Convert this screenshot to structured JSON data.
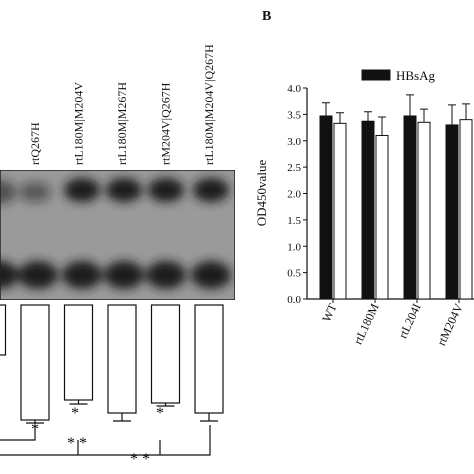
{
  "panel_label": "B",
  "chart_data": [
    {
      "type": "bar",
      "orientation": "down",
      "categories": [
        null,
        "rtQ267H",
        "rtL180M|M204V",
        "rtL180M|M267H",
        "rtM204V|Q267H",
        "rtL180M|M204V|Q267H"
      ],
      "values": [
        50,
        115,
        95,
        108,
        98,
        108
      ],
      "errors": [
        0,
        3,
        4,
        8,
        3,
        8
      ],
      "color": "#ffffff",
      "ylim": [
        0,
        130
      ],
      "annotations": [
        "*",
        "*",
        "*",
        "* *",
        "* *"
      ]
    },
    {
      "type": "bar",
      "ylabel": "OD450value",
      "categories": [
        "WT",
        "rtL180M",
        "rtL204I",
        "rtM204V"
      ],
      "series": [
        {
          "name": "HBsAg",
          "color": "#111111",
          "values": [
            3.47,
            3.37,
            3.47,
            3.3
          ],
          "errors": [
            0.25,
            0.18,
            0.4,
            0.38
          ]
        },
        {
          "color": "#ffffff",
          "values": [
            3.33,
            3.1,
            3.35,
            3.4
          ],
          "errors": [
            0.2,
            0.35,
            0.25,
            0.3
          ]
        }
      ],
      "ylim": [
        0,
        4
      ],
      "yticks": [
        {
          "value": 0,
          "label": "0.0"
        },
        {
          "value": 0.5,
          "label": "0.5"
        },
        {
          "value": 1,
          "label": "1.0"
        },
        {
          "value": 1.5,
          "label": "1.5"
        },
        {
          "value": 2,
          "label": "2.0"
        },
        {
          "value": 2.5,
          "label": "2.5"
        },
        {
          "value": 3,
          "label": "3.0"
        },
        {
          "value": 3.5,
          "label": "3.5"
        },
        {
          "value": 4,
          "label": "4.0"
        }
      ]
    }
  ]
}
